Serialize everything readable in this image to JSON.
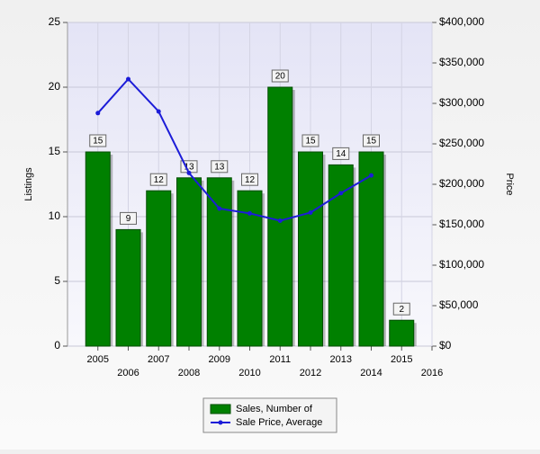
{
  "chart_data": {
    "type": "bar_line",
    "x": [
      2005,
      2006,
      2007,
      2008,
      2009,
      2010,
      2011,
      2012,
      2013,
      2014,
      2015
    ],
    "xlim": [
      2004,
      2016
    ],
    "xticks": [
      2005,
      2006,
      2007,
      2008,
      2009,
      2010,
      2011,
      2012,
      2013,
      2014,
      2015,
      2016
    ],
    "ylabel": "Listings",
    "ylim": [
      0,
      25
    ],
    "yticks": [
      0,
      5,
      10,
      15,
      20,
      25
    ],
    "y2label": "Price",
    "y2lim": [
      0,
      400000
    ],
    "y2ticks": [
      {
        "value": 0,
        "label": "$0"
      },
      {
        "value": 50000,
        "label": "$50,000"
      },
      {
        "value": 100000,
        "label": "$100,000"
      },
      {
        "value": 150000,
        "label": "$150,000"
      },
      {
        "value": 200000,
        "label": "$200,000"
      },
      {
        "value": 250000,
        "label": "$250,000"
      },
      {
        "value": 300000,
        "label": "$300,000"
      },
      {
        "value": 350000,
        "label": "$350,000"
      },
      {
        "value": 400000,
        "label": "$400,000"
      }
    ],
    "grid": true,
    "legend": "bottom",
    "series": [
      {
        "name": "Sales, Number of",
        "kind": "bar",
        "color": "#008000",
        "values": [
          15,
          9,
          12,
          13,
          13,
          12,
          20,
          15,
          14,
          15,
          2
        ]
      },
      {
        "name": "Sale Price, Average",
        "kind": "line",
        "axis": "y2",
        "color": "#1c1cd8",
        "values": [
          288000,
          330000,
          290000,
          214000,
          170000,
          164000,
          155000,
          165000,
          189000,
          211000,
          null
        ]
      }
    ]
  }
}
